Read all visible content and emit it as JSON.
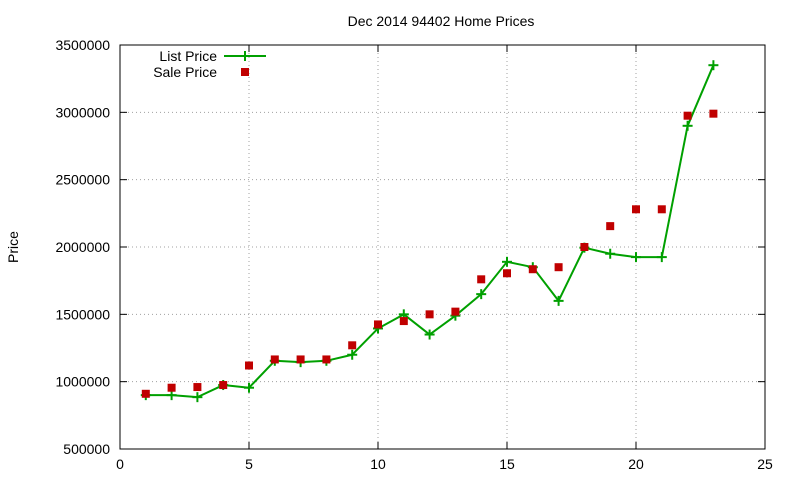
{
  "chart_data": {
    "type": "line",
    "title": "Dec 2014 94402 Home Prices",
    "xlabel": "",
    "ylabel": "Price",
    "xlim": [
      0,
      25
    ],
    "ylim": [
      500000,
      3500000
    ],
    "xticks": [
      0,
      5,
      10,
      15,
      20,
      25
    ],
    "yticks": [
      500000,
      1000000,
      1500000,
      2000000,
      2500000,
      3000000,
      3500000
    ],
    "xtick_labels": [
      "0",
      "5",
      "10",
      "15",
      "20",
      "25"
    ],
    "ytick_labels": [
      "500000",
      "1000000",
      "1500000",
      "2000000",
      "2500000",
      "3000000",
      "3500000"
    ],
    "grid": true,
    "legend_position": "top-left",
    "series": [
      {
        "name": "List Price",
        "style": "line-plus",
        "color": "#00a000",
        "x": [
          1,
          2,
          3,
          4,
          5,
          6,
          7,
          8,
          9,
          10,
          11,
          12,
          13,
          14,
          15,
          16,
          17,
          18,
          19,
          20,
          21,
          22,
          23
        ],
        "y": [
          900000,
          900000,
          885000,
          975000,
          955000,
          1155000,
          1145000,
          1155000,
          1200000,
          1395000,
          1500000,
          1350000,
          1490000,
          1650000,
          1890000,
          1850000,
          1600000,
          1995000,
          1950000,
          1925000,
          1925000,
          2900000,
          3350000
        ]
      },
      {
        "name": "Sale Price",
        "style": "square-points",
        "color": "#c00000",
        "x": [
          1,
          2,
          3,
          4,
          5,
          6,
          7,
          8,
          9,
          10,
          11,
          12,
          13,
          14,
          15,
          16,
          17,
          18,
          19,
          20,
          21,
          22,
          23
        ],
        "y": [
          910000,
          955000,
          960000,
          975000,
          1120000,
          1165000,
          1165000,
          1165000,
          1270000,
          1425000,
          1450000,
          1500000,
          1520000,
          1760000,
          1805000,
          1835000,
          1850000,
          2000000,
          2155000,
          2280000,
          2280000,
          2975000,
          2990000
        ]
      }
    ]
  }
}
